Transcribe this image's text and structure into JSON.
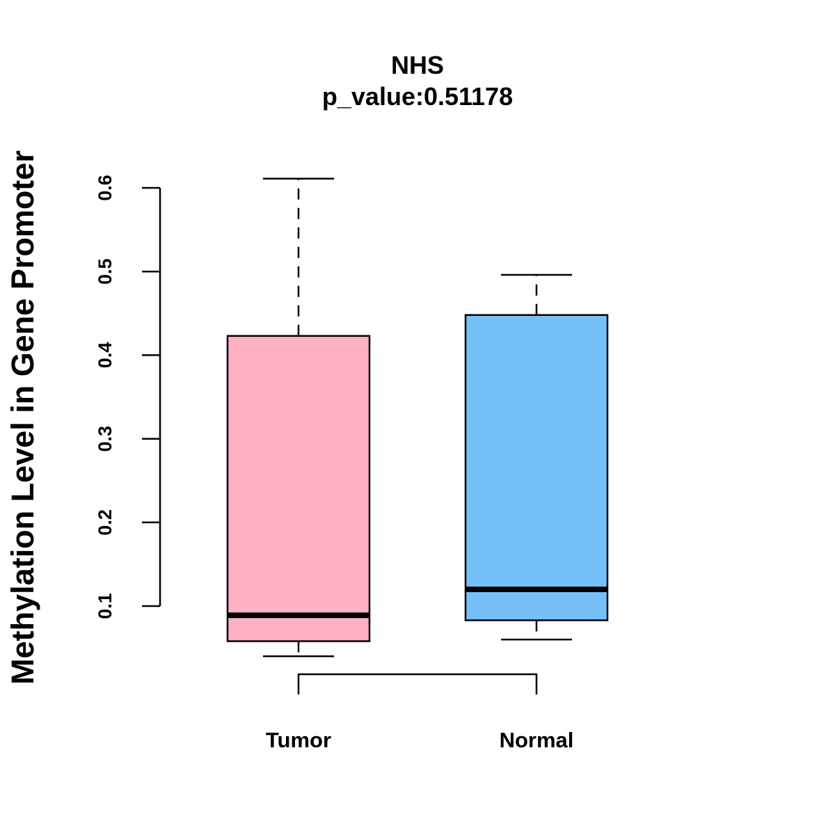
{
  "chart_data": {
    "type": "boxplot",
    "title": "NHS",
    "subtitle": "p_value:0.51178",
    "xlabel": "",
    "ylabel": "Methylation Level in Gene Promoter",
    "ylim": [
      0.1,
      0.6
    ],
    "yticks": [
      "0.1",
      "0.2",
      "0.3",
      "0.4",
      "0.5",
      "0.6"
    ],
    "grid": false,
    "categories": [
      "Tumor",
      "Normal"
    ],
    "series": [
      {
        "whisker_low": 0.04,
        "q1": 0.058,
        "median": 0.089,
        "q3": 0.423,
        "whisker_high": 0.611,
        "color": "#FDB1C2"
      },
      {
        "whisker_low": 0.06,
        "q1": 0.083,
        "median": 0.12,
        "q3": 0.448,
        "whisker_high": 0.496,
        "color": "#76C0F9"
      }
    ],
    "comparison_bracket": true
  }
}
